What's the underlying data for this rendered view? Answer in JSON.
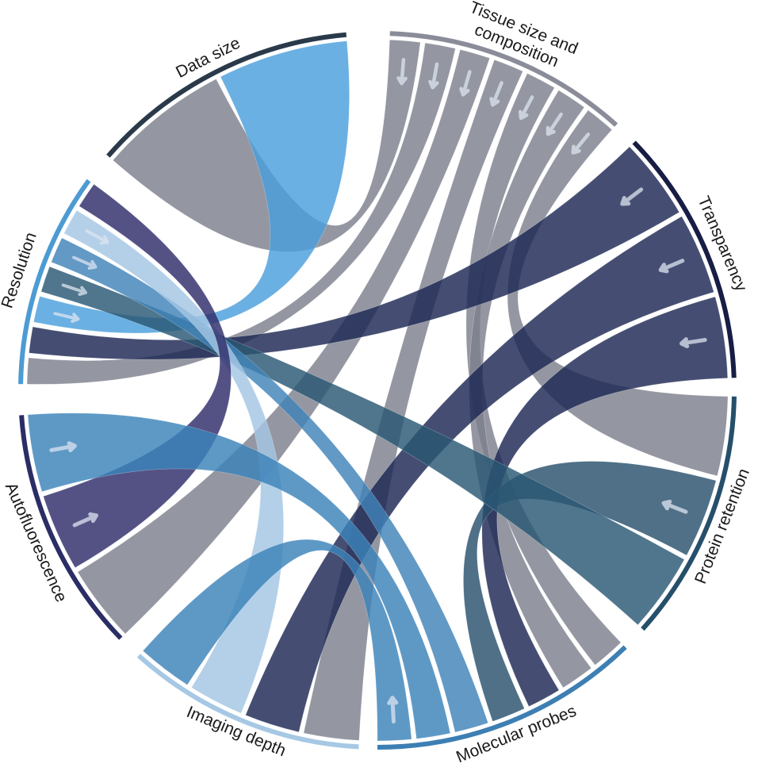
{
  "diagram": {
    "type": "chord",
    "segments": [
      {
        "id": "tissue",
        "label_lines": [
          "Tissue size and",
          "composition"
        ],
        "color": "#8a8d99"
      },
      {
        "id": "transparency",
        "label_lines": [
          "Transparency"
        ],
        "color": "#171d44"
      },
      {
        "id": "protein",
        "label_lines": [
          "Protein retention"
        ],
        "color": "#254f6a"
      },
      {
        "id": "molecular",
        "label_lines": [
          "Molecular probes"
        ],
        "color": "#3d7fb3"
      },
      {
        "id": "imaging",
        "label_lines": [
          "Imaging depth"
        ],
        "color": "#a6c8e4"
      },
      {
        "id": "autofluor",
        "label_lines": [
          "Autofluorescence"
        ],
        "color": "#2b2d66"
      },
      {
        "id": "resolution",
        "label_lines": [
          "Resolution"
        ],
        "color": "#4d9bd3"
      },
      {
        "id": "datasize",
        "label_lines": [
          "Data size"
        ],
        "color": "#2a3a4a"
      }
    ],
    "links": [
      {
        "from": "tissue",
        "to": "datasize",
        "color": "#7d808c"
      },
      {
        "from": "tissue",
        "to": "resolution",
        "color": "#7d808c"
      },
      {
        "from": "tissue",
        "to": "autofluor",
        "color": "#7d808c"
      },
      {
        "from": "tissue",
        "to": "imaging",
        "color": "#7d808c"
      },
      {
        "from": "tissue",
        "to": "molecular",
        "color": "#7d808c"
      },
      {
        "from": "tissue",
        "to": "molecular",
        "color": "#7d808c"
      },
      {
        "from": "tissue",
        "to": "protein",
        "color": "#7d808c"
      },
      {
        "from": "transparency",
        "to": "resolution",
        "color": "#1c2753"
      },
      {
        "from": "transparency",
        "to": "imaging",
        "color": "#1c2753"
      },
      {
        "from": "transparency",
        "to": "molecular",
        "color": "#1c2753"
      },
      {
        "from": "protein",
        "to": "molecular",
        "color": "#28506d"
      },
      {
        "from": "resolution",
        "to": "datasize",
        "color": "#4a9fdc"
      },
      {
        "from": "resolution",
        "to": "protein",
        "color": "#2a5874"
      },
      {
        "from": "resolution",
        "to": "molecular",
        "color": "#3f83b8"
      },
      {
        "from": "resolution",
        "to": "imaging",
        "color": "#a4c6e3"
      },
      {
        "from": "autofluor",
        "to": "resolution",
        "color": "#2e2c6a"
      },
      {
        "from": "autofluor",
        "to": "molecular",
        "color": "#3b82b9"
      },
      {
        "from": "molecular",
        "to": "imaging",
        "color": "#3b82b9"
      }
    ]
  }
}
